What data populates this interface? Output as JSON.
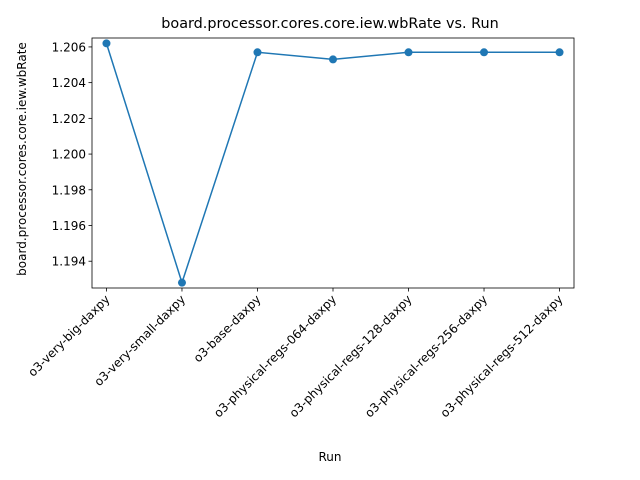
{
  "chart_data": {
    "type": "line",
    "title": "board.processor.cores.core.iew.wbRate vs. Run",
    "xlabel": "Run",
    "ylabel": "board.processor.cores.core.iew.wbRate",
    "categories": [
      "o3-very-big-daxpy",
      "o3-very-small-daxpy",
      "o3-base-daxpy",
      "o3-physical-regs-064-daxpy",
      "o3-physical-regs-128-daxpy",
      "o3-physical-regs-256-daxpy",
      "o3-physical-regs-512-daxpy"
    ],
    "series": [
      {
        "values": [
          1.2062,
          1.1928,
          1.2057,
          1.2053,
          1.2057,
          1.2057,
          1.2057
        ],
        "color": "#1f77b4"
      }
    ],
    "ylim": [
      1.1925,
      1.2065
    ],
    "yticks": [
      "1.194",
      "1.196",
      "1.198",
      "1.200",
      "1.202",
      "1.204",
      "1.206"
    ],
    "grid": false,
    "legend": "none",
    "marker": "circle"
  }
}
